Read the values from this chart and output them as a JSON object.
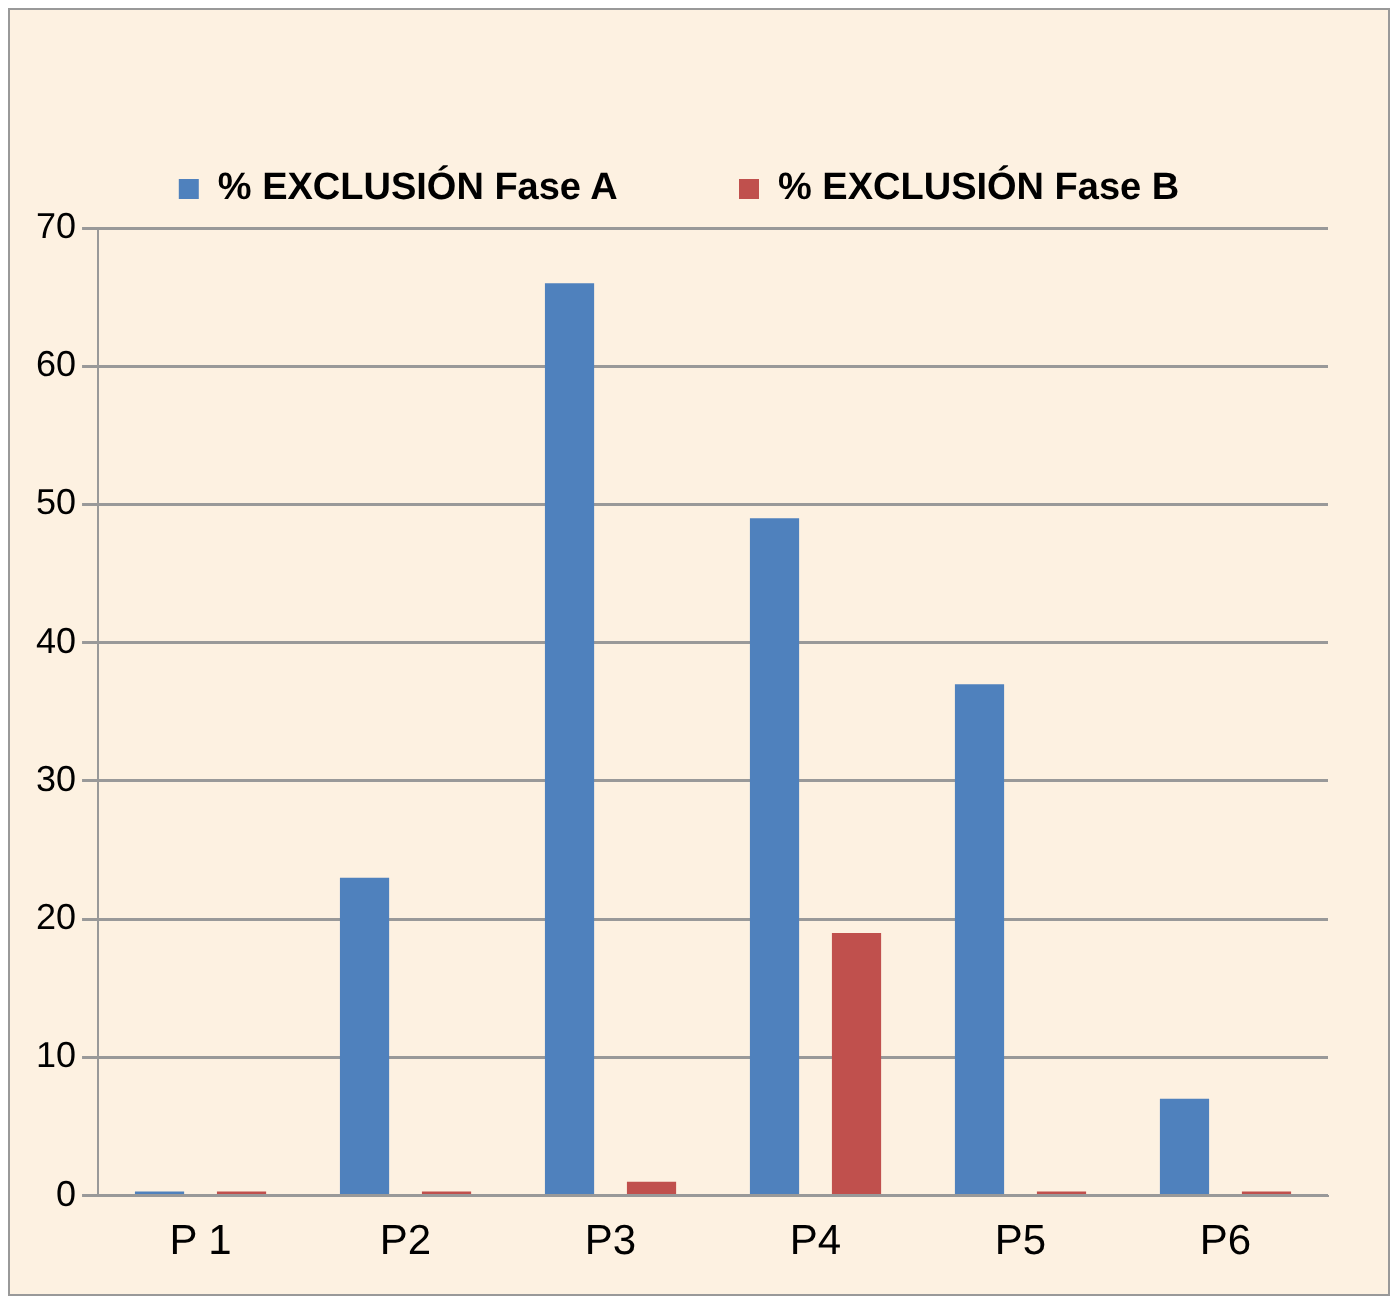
{
  "chart_data": {
    "type": "bar",
    "categories": [
      "P 1",
      "P2",
      "P3",
      "P4",
      "P5",
      "P6"
    ],
    "series": [
      {
        "name": "% EXCLUSIÓN Fase A",
        "color": "#4f81bd",
        "values": [
          0,
          23,
          66,
          49,
          37,
          7
        ]
      },
      {
        "name": "% EXCLUSIÓN Fase B",
        "color": "#c0504d",
        "values": [
          0,
          0,
          1,
          19,
          0,
          0
        ]
      }
    ],
    "ylim": [
      0,
      70
    ],
    "yticks": [
      0,
      10,
      20,
      30,
      40,
      50,
      60,
      70
    ],
    "grid": "y",
    "legend": "top"
  }
}
